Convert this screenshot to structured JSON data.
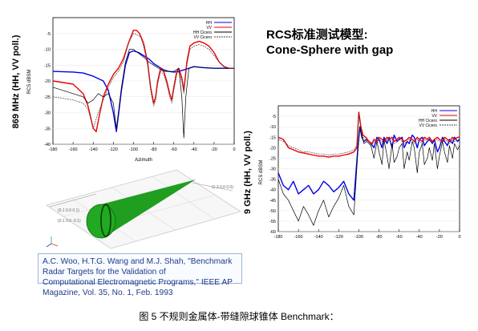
{
  "title": {
    "line1": "RCS标准测试模型:",
    "line2": "Cone-Sphere with gap"
  },
  "reference": {
    "line1": "A.C. Woo, H.T.G. Wang and M.J. Shah, \"Benchmark Radar Targets for the Validation of",
    "line2": "Computational Electromagnetic Programs,\" IEEE AP Magazine, Vol. 35, No. 1, Feb. 1993"
  },
  "caption": "图 5 不规则金属体-带缝隙球锥体 Benchmark：",
  "model": {
    "labels": [
      "(0.1 0.0 0.1)",
      "(0.1 0.0 -0.1)",
      "(1.3 0.0 0.0)"
    ],
    "colors": {
      "cone": "#1f9e1f",
      "cone_dark": "#0c6a0c"
    }
  },
  "colors": {
    "hh": "#0000ee",
    "vv": "#ee0000",
    "hh_cicero": "#000000",
    "vv_cicero": "#444444"
  },
  "chart_data": [
    {
      "type": "line",
      "title": "",
      "side_label": "869 MHz (HH, VV poll.)",
      "ylabel": "RCS dBSM",
      "xlabel": "Azimuth",
      "xlim": [
        -180,
        0
      ],
      "ylim": [
        -40,
        0
      ],
      "xticks": [
        -180,
        -160,
        -140,
        -120,
        -100,
        -80,
        -60,
        -40,
        -20,
        0
      ],
      "yticks": [
        -5,
        -10,
        -15,
        -20,
        -25,
        -30,
        -35,
        -40
      ],
      "legend": {
        "position": "top-right",
        "entries": [
          "HH",
          "VV",
          "HH Cicero",
          "VV Cicero"
        ]
      },
      "series": [
        {
          "name": "HH",
          "x": [
            -180,
            -160,
            -150,
            -140,
            -130,
            -125,
            -120,
            -117,
            -115,
            -112,
            -108,
            -104,
            -100,
            -95,
            -90,
            -85,
            -80,
            -75,
            -70,
            -65,
            -60,
            -55,
            -50,
            -45,
            -40,
            -30,
            -20,
            -10,
            0
          ],
          "y": [
            -17,
            -17.2,
            -17.5,
            -18.5,
            -20,
            -23,
            -30,
            -36,
            -31,
            -23,
            -15,
            -11,
            -10.5,
            -11,
            -12,
            -13,
            -14.5,
            -15.5,
            -16.5,
            -17,
            -17.2,
            -17,
            -16.5,
            -16,
            -15.5,
            -15.8,
            -16,
            -16,
            -16
          ]
        },
        {
          "name": "VV",
          "x": [
            -180,
            -170,
            -160,
            -150,
            -145,
            -140,
            -137,
            -134,
            -130,
            -125,
            -120,
            -115,
            -110,
            -105,
            -100,
            -97,
            -94,
            -90,
            -86,
            -83,
            -80,
            -78,
            -76,
            -73,
            -70,
            -67,
            -64,
            -62,
            -60,
            -57,
            -55,
            -52,
            -50,
            -47,
            -44,
            -40,
            -35,
            -30,
            -25,
            -20,
            -15,
            -10,
            -5,
            0
          ],
          "y": [
            -20,
            -20.5,
            -21,
            -24,
            -28,
            -35,
            -36,
            -31,
            -25,
            -21,
            -18,
            -16,
            -13,
            -8,
            -4,
            -4,
            -5,
            -8,
            -14,
            -22,
            -27,
            -25,
            -20,
            -16,
            -17,
            -20,
            -24,
            -26,
            -22,
            -17,
            -16,
            -19,
            -23,
            -14,
            -9,
            -8,
            -7.5,
            -8,
            -9,
            -11,
            -14,
            -15.5,
            -16,
            -16
          ]
        },
        {
          "name": "HH Cicero",
          "x": [
            -180,
            -170,
            -160,
            -150,
            -145,
            -140,
            -135,
            -130,
            -125,
            -120,
            -117,
            -115,
            -112,
            -108,
            -104,
            -100,
            -96,
            -92,
            -88,
            -85,
            -80,
            -75,
            -70,
            -65,
            -60,
            -55,
            -52,
            -50,
            -48,
            -45,
            -40,
            -30,
            -20,
            -10,
            0
          ],
          "y": [
            -22,
            -23,
            -24,
            -25,
            -27,
            -26,
            -24,
            -25,
            -24,
            -27,
            -35,
            -30,
            -22,
            -14,
            -10,
            -10,
            -11,
            -12,
            -13,
            -14,
            -15,
            -16,
            -17,
            -17,
            -17,
            -16,
            -25,
            -38,
            -25,
            -16,
            -15.5,
            -15.8,
            -16,
            -16,
            -16
          ]
        },
        {
          "name": "VV Cicero",
          "x": [
            -180,
            -170,
            -160,
            -150,
            -145,
            -140,
            -135,
            -130,
            -125,
            -120,
            -115,
            -110,
            -105,
            -100,
            -96,
            -93,
            -90,
            -86,
            -83,
            -80,
            -78,
            -76,
            -73,
            -70,
            -67,
            -64,
            -62,
            -60,
            -57,
            -55,
            -52,
            -50,
            -47,
            -44,
            -40,
            -35,
            -30,
            -25,
            -20,
            -15,
            -10,
            -5,
            0
          ],
          "y": [
            -25,
            -25.5,
            -26,
            -27,
            -29,
            -35,
            -30,
            -26,
            -22,
            -19,
            -17,
            -14,
            -8,
            -5,
            -5.5,
            -6,
            -9,
            -15,
            -23,
            -28,
            -26,
            -21,
            -17,
            -18,
            -21,
            -25,
            -27,
            -23,
            -18,
            -17,
            -20,
            -24,
            -15,
            -10,
            -9,
            -8.5,
            -9,
            -10,
            -12,
            -14,
            -15.5,
            -16,
            -16
          ]
        }
      ]
    },
    {
      "type": "line",
      "title": "",
      "side_label": "9 GHz (HH, VV poll.)",
      "ylabel": "RCS dBSM",
      "xlabel": "",
      "xlim": [
        -180,
        0
      ],
      "ylim": [
        -60,
        0
      ],
      "xticks": [
        -180,
        -160,
        -140,
        -120,
        -100,
        -80,
        -60,
        -40,
        -20,
        0
      ],
      "yticks": [
        -5,
        -10,
        -15,
        -20,
        -25,
        -30,
        -35,
        -40,
        -45,
        -50,
        -55,
        -60
      ],
      "legend": {
        "position": "top-right",
        "entries": [
          "HH",
          "VV",
          "HH Cicero",
          "VV Cicero"
        ]
      },
      "series": [
        {
          "name": "HH",
          "x": [
            -180,
            -175,
            -170,
            -165,
            -160,
            -155,
            -150,
            -145,
            -140,
            -135,
            -130,
            -125,
            -120,
            -115,
            -110,
            -105,
            -101,
            -99,
            -97,
            -95,
            -92,
            -88,
            -85,
            -82,
            -80,
            -77,
            -75,
            -72,
            -70,
            -67,
            -65,
            -62,
            -60,
            -57,
            -55,
            -52,
            -50,
            -47,
            -45,
            -42,
            -40,
            -37,
            -35,
            -32,
            -30,
            -27,
            -25,
            -22,
            -20,
            -17,
            -15,
            -12,
            -10,
            -7,
            -5,
            -2,
            0
          ],
          "y": [
            -32,
            -38,
            -40,
            -36,
            -42,
            -40,
            -38,
            -42,
            -40,
            -36,
            -38,
            -41,
            -39,
            -36,
            -42,
            -45,
            -20,
            -10,
            -15,
            -17,
            -16,
            -18,
            -20,
            -15,
            -16,
            -20,
            -15,
            -18,
            -15,
            -20,
            -14,
            -17,
            -16,
            -15,
            -20,
            -17,
            -18,
            -14,
            -15,
            -20,
            -16,
            -15,
            -19,
            -17,
            -16,
            -18,
            -16,
            -22,
            -20,
            -15,
            -17,
            -19,
            -16,
            -18,
            -15,
            -17,
            -16
          ]
        },
        {
          "name": "VV",
          "x": [
            -180,
            -175,
            -170,
            -165,
            -160,
            -155,
            -150,
            -145,
            -140,
            -135,
            -130,
            -125,
            -120,
            -115,
            -110,
            -105,
            -102,
            -100,
            -98,
            -96,
            -93,
            -90,
            -87,
            -85,
            -82,
            -80,
            -77,
            -75,
            -72,
            -70,
            -67,
            -65,
            -62,
            -60,
            -57,
            -55,
            -52,
            -50,
            -47,
            -45,
            -42,
            -40,
            -37,
            -35,
            -32,
            -30,
            -27,
            -25,
            -22,
            -20,
            -17,
            -15,
            -12,
            -10,
            -7,
            -5,
            -2,
            0
          ],
          "y": [
            -15,
            -16,
            -20,
            -21,
            -22,
            -22.5,
            -23,
            -23.5,
            -24,
            -24,
            -24.5,
            -24,
            -24,
            -23.5,
            -23,
            -22,
            -20,
            -3,
            -10,
            -14,
            -15,
            -17,
            -18,
            -16,
            -17,
            -15,
            -16,
            -17,
            -15,
            -16,
            -15,
            -17,
            -16,
            -15,
            -16,
            -17,
            -16,
            -15,
            -16,
            -17,
            -15,
            -16,
            -17,
            -15,
            -16,
            -15,
            -17,
            -16,
            -15,
            -16,
            -17,
            -15,
            -16,
            -17,
            -15,
            -16,
            -15,
            -15
          ]
        },
        {
          "name": "HH Cicero",
          "x": [
            -180,
            -175,
            -170,
            -165,
            -160,
            -155,
            -150,
            -145,
            -140,
            -135,
            -130,
            -125,
            -120,
            -115,
            -110,
            -105,
            -101,
            -99,
            -97,
            -95,
            -92,
            -88,
            -85,
            -82,
            -80,
            -77,
            -75,
            -72,
            -70,
            -67,
            -65,
            -62,
            -60,
            -57,
            -55,
            -52,
            -50,
            -47,
            -45,
            -42,
            -40,
            -37,
            -35,
            -32,
            -30,
            -27,
            -25,
            -22,
            -20,
            -17,
            -15,
            -12,
            -10,
            -7,
            -5,
            -2,
            0
          ],
          "y": [
            -35,
            -42,
            -45,
            -50,
            -55,
            -48,
            -52,
            -57,
            -50,
            -45,
            -53,
            -48,
            -44,
            -38,
            -48,
            -52,
            -22,
            -10,
            -14,
            -18,
            -17,
            -19,
            -25,
            -17,
            -22,
            -28,
            -16,
            -24,
            -30,
            -18,
            -27,
            -24,
            -20,
            -18,
            -30,
            -22,
            -26,
            -17,
            -20,
            -32,
            -22,
            -18,
            -28,
            -25,
            -20,
            -26,
            -18,
            -30,
            -24,
            -17,
            -22,
            -27,
            -19,
            -25,
            -18,
            -21,
            -19
          ]
        },
        {
          "name": "VV Cicero",
          "x": [
            -180,
            -175,
            -170,
            -165,
            -160,
            -155,
            -150,
            -145,
            -140,
            -135,
            -130,
            -125,
            -120,
            -115,
            -110,
            -105,
            -102,
            -100,
            -98,
            -96,
            -93,
            -90,
            -87,
            -85,
            -82,
            -80,
            -77,
            -75,
            -72,
            -70,
            -67,
            -65,
            -62,
            -60,
            -57,
            -55,
            -52,
            -50,
            -47,
            -45,
            -42,
            -40,
            -37,
            -35,
            -32,
            -30,
            -27,
            -25,
            -22,
            -20,
            -17,
            -15,
            -12,
            -10,
            -7,
            -5,
            -2,
            0
          ],
          "y": [
            -16,
            -17,
            -19,
            -20,
            -21,
            -22,
            -22,
            -22.5,
            -23,
            -23,
            -23.5,
            -23,
            -23,
            -22.5,
            -22,
            -21,
            -19,
            -4,
            -11,
            -15,
            -16,
            -18,
            -19,
            -17,
            -18,
            -16,
            -17,
            -18,
            -16,
            -17,
            -16,
            -18,
            -17,
            -16,
            -17,
            -18,
            -17,
            -16,
            -17,
            -18,
            -16,
            -17,
            -18,
            -16,
            -17,
            -16,
            -18,
            -17,
            -16,
            -17,
            -18,
            -16,
            -17,
            -18,
            -16,
            -17,
            -16,
            -16
          ]
        }
      ]
    }
  ]
}
